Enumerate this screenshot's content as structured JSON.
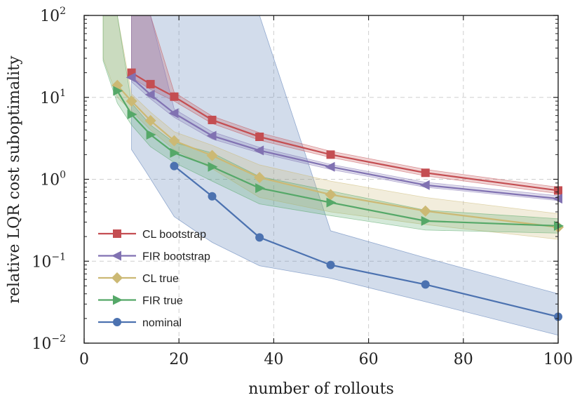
{
  "chart_data": {
    "type": "line",
    "title": "",
    "xlabel": "number of rollouts",
    "ylabel": "relative LQR cost suboptimality",
    "xlim": [
      0,
      100
    ],
    "ylim": [
      0.01,
      100
    ],
    "yscale": "log",
    "grid": true,
    "x_ticks": [
      {
        "value": 0,
        "label": "0"
      },
      {
        "value": 20,
        "label": "20"
      },
      {
        "value": 40,
        "label": "40"
      },
      {
        "value": 60,
        "label": "60"
      },
      {
        "value": 80,
        "label": "80"
      },
      {
        "value": 100,
        "label": "100"
      }
    ],
    "y_ticks": [
      {
        "value": 100,
        "base": "10",
        "exp": "2"
      },
      {
        "value": 10,
        "base": "10",
        "exp": "1"
      },
      {
        "value": 1,
        "base": "10",
        "exp": "0"
      },
      {
        "value": 0.1,
        "base": "10",
        "exp": "−1"
      },
      {
        "value": 0.01,
        "base": "10",
        "exp": "−2"
      }
    ],
    "legend_position": "lower-left",
    "series": [
      {
        "name": "nominal",
        "color": "#4c72b0",
        "marker": "circle",
        "x": [
          19,
          27,
          37,
          52,
          72,
          100
        ],
        "y": [
          1.45,
          0.62,
          0.195,
          0.09,
          0.052,
          0.021
        ],
        "band": {
          "x": [
            10,
            13,
            19,
            27,
            37,
            52,
            72,
            100
          ],
          "lower": [
            2.3,
            1.25,
            0.35,
            0.17,
            0.088,
            0.062,
            0.032,
            0.0125
          ],
          "upper": [
            100,
            100,
            100,
            100,
            100,
            0.235,
            0.11,
            0.04
          ]
        }
      },
      {
        "name": "CL bootstrap",
        "color": "#c44e52",
        "marker": "square",
        "x": [
          10,
          14,
          19,
          27,
          37,
          52,
          72,
          100
        ],
        "y": [
          20,
          14.5,
          10.2,
          5.3,
          3.3,
          2.0,
          1.2,
          0.73
        ],
        "band": {
          "x": [
            10,
            14,
            19,
            27,
            37,
            52,
            72,
            100
          ],
          "lower": [
            17.5,
            12.5,
            9.0,
            4.8,
            3.0,
            1.85,
            1.1,
            0.67
          ],
          "upper": [
            100,
            100,
            11.5,
            5.9,
            3.7,
            2.2,
            1.32,
            0.8
          ]
        }
      },
      {
        "name": "FIR bootstrap",
        "color": "#8172b2",
        "marker": "triangle-left",
        "x": [
          10,
          14,
          19,
          27,
          37,
          52,
          72,
          100
        ],
        "y": [
          17.5,
          10.8,
          6.4,
          3.4,
          2.25,
          1.42,
          0.85,
          0.58
        ],
        "band": {
          "x": [
            10,
            14,
            19,
            27,
            37,
            52,
            72,
            100
          ],
          "lower": [
            15.5,
            9.6,
            5.7,
            3.1,
            2.1,
            1.32,
            0.8,
            0.55
          ],
          "upper": [
            100,
            100,
            7.2,
            3.8,
            2.45,
            1.52,
            0.92,
            0.63
          ]
        }
      },
      {
        "name": "CL true",
        "color": "#ccb974",
        "marker": "diamond",
        "x": [
          7,
          10,
          14,
          19,
          27,
          37,
          52,
          72,
          100
        ],
        "y": [
          14,
          9.0,
          5.2,
          2.95,
          1.95,
          1.05,
          0.65,
          0.41,
          0.26
        ],
        "band": {
          "x": [
            4,
            7,
            10,
            14,
            19,
            27,
            37,
            52,
            72,
            100
          ],
          "lower": [
            30,
            10,
            6.8,
            4.0,
            2.3,
            1.35,
            0.6,
            0.4,
            0.28,
            0.185
          ],
          "upper": [
            100,
            100,
            11,
            6.6,
            3.8,
            2.6,
            1.5,
            0.95,
            0.6,
            0.38
          ]
        }
      },
      {
        "name": "FIR true",
        "color": "#55a868",
        "marker": "triangle-right",
        "x": [
          7,
          10,
          14,
          19,
          27,
          37,
          52,
          72,
          100
        ],
        "y": [
          12.0,
          6.2,
          3.5,
          2.1,
          1.42,
          0.78,
          0.52,
          0.31,
          0.27
        ],
        "band": {
          "x": [
            4,
            7,
            10,
            14,
            19,
            27,
            37,
            52,
            72,
            100
          ],
          "lower": [
            28,
            8.5,
            4.6,
            2.5,
            1.6,
            0.95,
            0.5,
            0.36,
            0.24,
            0.22
          ],
          "upper": [
            100,
            100,
            8.5,
            4.6,
            2.8,
            2.1,
            1.08,
            0.72,
            0.42,
            0.33
          ]
        }
      }
    ],
    "legend": [
      {
        "name": "CL bootstrap",
        "color": "#c44e52",
        "marker": "square"
      },
      {
        "name": "FIR bootstrap",
        "color": "#8172b2",
        "marker": "triangle-left"
      },
      {
        "name": "CL true",
        "color": "#ccb974",
        "marker": "diamond"
      },
      {
        "name": "FIR true",
        "color": "#55a868",
        "marker": "triangle-right"
      },
      {
        "name": "nominal",
        "color": "#4c72b0",
        "marker": "circle"
      }
    ]
  }
}
